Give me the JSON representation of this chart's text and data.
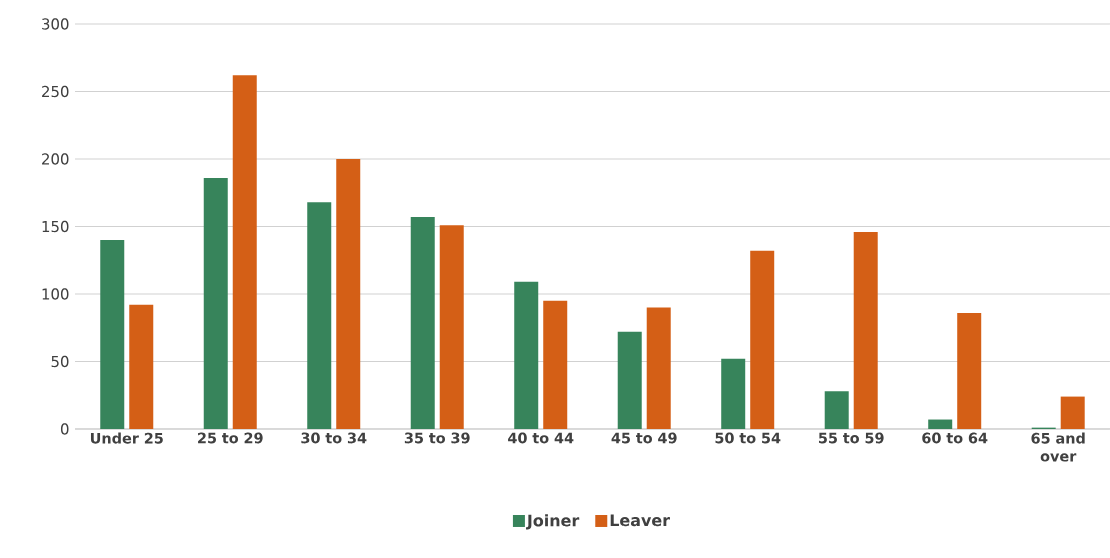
{
  "chart_data": {
    "type": "bar",
    "categories": [
      "Under 25",
      "25 to 29",
      "30 to 34",
      "35 to 39",
      "40 to 44",
      "45 to 49",
      "50 to 54",
      "55 to 59",
      "60 to 64",
      "65 and over"
    ],
    "series": [
      {
        "name": "Joiner",
        "color": "#37845b",
        "values": [
          140,
          186,
          168,
          157,
          109,
          72,
          52,
          28,
          7,
          1
        ]
      },
      {
        "name": "Leaver",
        "color": "#d45f16",
        "values": [
          92,
          262,
          200,
          151,
          95,
          90,
          132,
          146,
          86,
          24
        ]
      }
    ],
    "ylim": [
      0,
      300
    ],
    "yticks": [
      0,
      50,
      100,
      150,
      200,
      250,
      300
    ],
    "grid": "y",
    "legend": "bottom"
  }
}
